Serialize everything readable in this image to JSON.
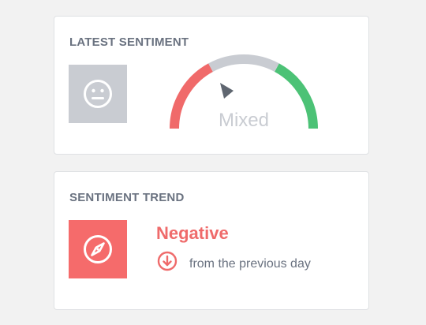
{
  "latest": {
    "title": "LATEST SENTIMENT",
    "face_icon": "neutral-face-icon",
    "gauge": {
      "label": "Mixed",
      "segments": [
        {
          "name": "negative",
          "color": "#f06a6a"
        },
        {
          "name": "mixed",
          "color": "#c9ccd2"
        },
        {
          "name": "positive",
          "color": "#4cc276"
        }
      ],
      "pointer_color": "#5f6670"
    }
  },
  "trend": {
    "title": "SENTIMENT TREND",
    "icon": "compass-icon",
    "value": "Negative",
    "direction_icon": "arrow-down-circle-icon",
    "caption": "from the previous day",
    "accent": "#f56b6b"
  }
}
